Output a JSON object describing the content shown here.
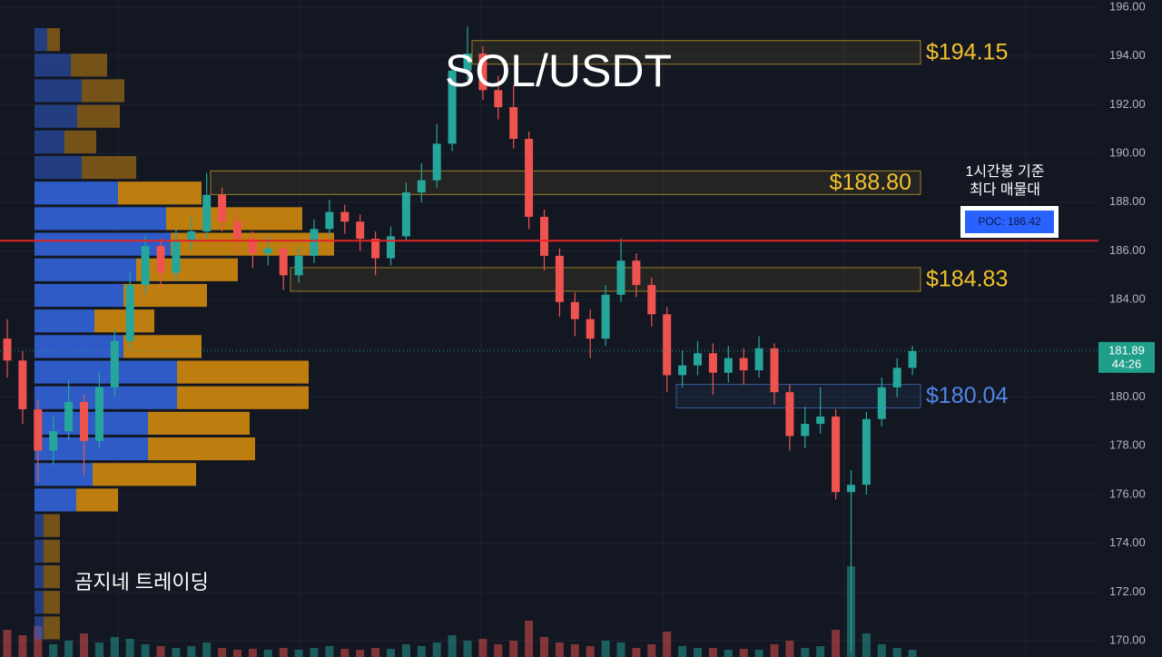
{
  "chart_data": {
    "type": "candlestick",
    "title": "SOL/USDT",
    "watermark": "곰지네 트레이딩",
    "ylim": [
      169.33,
      196.3
    ],
    "yticks": [
      {
        "value": 196,
        "label": "196.00"
      },
      {
        "value": 194,
        "label": "194.00"
      },
      {
        "value": 192,
        "label": "192.00"
      },
      {
        "value": 190,
        "label": "190.00"
      },
      {
        "value": 188,
        "label": "188.00"
      },
      {
        "value": 186,
        "label": "186.00"
      },
      {
        "value": 184,
        "label": "184.00"
      },
      {
        "value": 182,
        "label": "182.00"
      },
      {
        "value": 180,
        "label": "180.00"
      },
      {
        "value": 178,
        "label": "178.00"
      },
      {
        "value": 176,
        "label": "176.00"
      },
      {
        "value": 174,
        "label": "174.00"
      },
      {
        "value": 172,
        "label": "172.00"
      },
      {
        "value": 170,
        "label": "170.00"
      }
    ],
    "grid": true,
    "up_color": "#26a69a",
    "down_color": "#ef5350",
    "open": [
      182.4,
      181.5,
      179.5,
      177.8,
      178.6,
      179.8,
      178.2,
      180.4,
      182.3,
      184.6,
      186.2,
      185.1,
      186.4,
      186.8,
      188.3,
      187.2,
      186.5,
      185.9,
      186.1,
      185.0,
      185.8,
      186.9,
      187.6,
      187.2,
      186.5,
      185.7,
      186.6,
      188.4,
      188.9,
      190.4,
      193.4,
      194.1,
      192.6,
      191.9,
      190.6,
      187.4,
      185.8,
      183.9,
      183.2,
      182.4,
      184.2,
      185.6,
      184.6,
      183.4,
      180.9,
      181.3,
      181.8,
      181.0,
      181.6,
      181.1,
      182.0,
      180.2,
      178.4,
      178.9,
      179.2,
      176.1,
      176.4,
      179.1,
      180.4,
      181.2
    ],
    "high": [
      183.2,
      181.9,
      179.9,
      179.2,
      180.7,
      180.1,
      181.0,
      182.8,
      185.1,
      186.6,
      186.5,
      186.9,
      187.4,
      189.2,
      188.6,
      187.6,
      186.8,
      186.6,
      186.3,
      186.2,
      187.3,
      188.1,
      187.9,
      187.5,
      186.8,
      187.0,
      188.8,
      189.6,
      191.2,
      194.0,
      195.2,
      194.4,
      193.2,
      192.8,
      190.9,
      187.7,
      186.1,
      184.3,
      183.6,
      184.6,
      186.5,
      185.9,
      184.9,
      183.7,
      181.9,
      182.3,
      182.2,
      182.1,
      182.0,
      182.5,
      182.2,
      180.5,
      179.6,
      180.4,
      179.5,
      177.0,
      179.4,
      180.8,
      181.6,
      182.1
    ],
    "low": [
      180.8,
      178.9,
      176.5,
      177.2,
      178.2,
      176.8,
      177.9,
      180.0,
      182.0,
      184.2,
      184.4,
      184.8,
      186.0,
      186.5,
      186.8,
      185.9,
      185.3,
      185.4,
      184.4,
      184.7,
      185.5,
      186.6,
      186.7,
      186.0,
      185.0,
      185.4,
      186.4,
      188.0,
      188.6,
      190.1,
      193.0,
      192.2,
      191.4,
      190.2,
      186.9,
      185.2,
      183.3,
      182.5,
      181.6,
      182.1,
      183.9,
      184.1,
      182.9,
      180.2,
      180.4,
      180.9,
      180.1,
      180.6,
      180.5,
      180.8,
      179.7,
      177.8,
      177.9,
      178.5,
      175.8,
      169.5,
      176.0,
      178.8,
      180.0,
      180.9
    ],
    "close": [
      181.5,
      179.5,
      177.8,
      178.6,
      179.8,
      178.2,
      180.4,
      182.3,
      184.6,
      186.2,
      185.1,
      186.4,
      186.8,
      188.3,
      187.2,
      186.5,
      185.9,
      186.1,
      185.0,
      185.8,
      186.9,
      187.6,
      187.2,
      186.5,
      185.7,
      186.6,
      188.4,
      188.9,
      190.4,
      193.4,
      194.1,
      192.6,
      191.9,
      190.6,
      187.4,
      185.8,
      183.9,
      183.2,
      182.4,
      184.2,
      185.6,
      184.6,
      183.4,
      180.9,
      181.3,
      181.8,
      181.0,
      181.6,
      181.1,
      182.0,
      180.2,
      178.4,
      178.9,
      179.2,
      176.1,
      176.4,
      179.1,
      180.4,
      181.2,
      181.89
    ],
    "volume": [
      30,
      24,
      34,
      14,
      18,
      26,
      16,
      22,
      20,
      14,
      12,
      10,
      12,
      16,
      10,
      8,
      9,
      8,
      10,
      8,
      10,
      12,
      9,
      8,
      10,
      9,
      14,
      12,
      16,
      24,
      18,
      20,
      14,
      18,
      40,
      22,
      16,
      14,
      12,
      18,
      16,
      10,
      14,
      28,
      12,
      10,
      10,
      8,
      9,
      8,
      14,
      18,
      10,
      12,
      30,
      100,
      26,
      14,
      10,
      8
    ],
    "profile": {
      "bins": [
        195.2,
        194.15,
        193.1,
        192.05,
        191.0,
        189.95,
        188.9,
        187.85,
        186.8,
        185.75,
        184.7,
        183.65,
        182.6,
        181.55,
        180.5,
        179.45,
        178.4,
        177.35,
        176.3,
        175.25,
        174.2,
        173.15,
        172.1,
        171.05,
        170.0
      ],
      "buy": [
        14,
        40,
        52,
        47,
        33,
        52,
        92,
        145,
        150,
        112,
        98,
        66,
        98,
        157,
        157,
        125,
        125,
        64,
        46,
        10,
        10,
        10,
        10,
        10
      ],
      "sell": [
        14,
        40,
        47,
        47,
        35,
        60,
        92,
        150,
        180,
        112,
        92,
        66,
        86,
        145,
        145,
        112,
        118,
        114,
        46,
        18,
        18,
        18,
        18,
        18
      ],
      "buy_color": "#2f5fd0",
      "sell_color": "#c7830f"
    },
    "levels": [
      {
        "value": 194.15,
        "label": "$194.15",
        "color": "#f4c22b"
      },
      {
        "value": 188.8,
        "label": "$188.80",
        "color": "#f4c22b"
      },
      {
        "value": 184.83,
        "label": "$184.83",
        "color": "#f4c22b"
      },
      {
        "value": 180.04,
        "label": "$180.04",
        "color": "#4f86e8"
      }
    ],
    "poc": {
      "value": 186.42,
      "label": "POC: 186.42",
      "note": [
        "1시간봉 기준",
        "최다 매물대"
      ],
      "color": "#e02424"
    },
    "last_price": {
      "value": 181.89,
      "countdown": "44:26",
      "color": "#1f9e8a"
    }
  }
}
